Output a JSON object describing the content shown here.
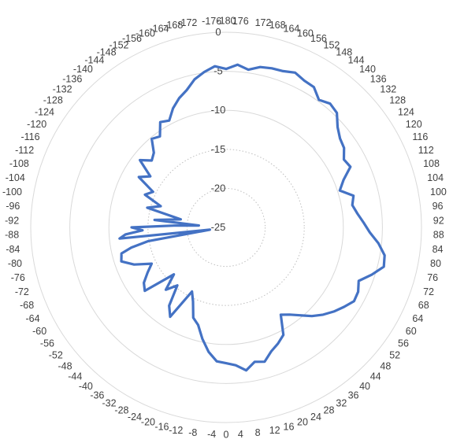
{
  "chart_data": {
    "type": "polar-line",
    "title": "",
    "angle_unit": "degrees",
    "angle_direction": "clockwise-from-bottom",
    "angle_tick_step": 4,
    "angle_tick_labels": [
      "-180",
      "-176",
      "-172",
      "-168",
      "-164",
      "-160",
      "-156",
      "-152",
      "-148",
      "-144",
      "-140",
      "-136",
      "-132",
      "-128",
      "-124",
      "-120",
      "-116",
      "-112",
      "-108",
      "-104",
      "-100",
      "-96",
      "-92",
      "-88",
      "-84",
      "-80",
      "-76",
      "-72",
      "-68",
      "-64",
      "-60",
      "-56",
      "-52",
      "-48",
      "-44",
      "-40",
      "-36",
      "-32",
      "-28",
      "-24",
      "-20",
      "-16",
      "-12",
      "-8",
      "-4",
      "0",
      "4",
      "8",
      "12",
      "16",
      "20",
      "24",
      "28",
      "32",
      "36",
      "40",
      "44",
      "48",
      "52",
      "56",
      "60",
      "64",
      "68",
      "72",
      "76",
      "80",
      "84",
      "88",
      "92",
      "96",
      "100",
      "104",
      "108",
      "112",
      "116",
      "120",
      "124",
      "128",
      "132",
      "136",
      "140",
      "144",
      "148",
      "152",
      "156",
      "160",
      "164",
      "168",
      "172",
      "176"
    ],
    "radial_range": [
      -25,
      0
    ],
    "radial_ticks": [
      -25,
      -20,
      -15,
      -10,
      -5,
      0
    ],
    "radial_tick_labels": [
      "-25",
      "-20",
      "-15",
      "-10",
      "-5",
      "0"
    ],
    "grid": true,
    "legend": "none",
    "series": [
      {
        "color": "#4472C4",
        "points": [
          [
            -180,
            -4.7
          ],
          [
            -176,
            -4.3
          ],
          [
            -172,
            -4.9
          ],
          [
            -168,
            -5.6
          ],
          [
            -164,
            -6.7
          ],
          [
            -160,
            -7.4
          ],
          [
            -156,
            -8.3
          ],
          [
            -152,
            -9.5
          ],
          [
            -148,
            -9.1
          ],
          [
            -144,
            -10.6
          ],
          [
            -140,
            -10.2
          ],
          [
            -136,
            -11.7
          ],
          [
            -132,
            -12.2
          ],
          [
            -128,
            -11.0
          ],
          [
            -124,
            -13.3
          ],
          [
            -120,
            -12.1
          ],
          [
            -116,
            -14.6
          ],
          [
            -112,
            -13.8
          ],
          [
            -108,
            -16.2
          ],
          [
            -104,
            -14.6
          ],
          [
            -100,
            -19.1
          ],
          [
            -96,
            -15.8
          ],
          [
            -94,
            -21.5
          ],
          [
            -92,
            -18.3
          ],
          [
            -90,
            -12.9
          ],
          [
            -88,
            -14.3
          ],
          [
            -86,
            -12.1
          ],
          [
            -84,
            -11.3
          ],
          [
            -82,
            -22.9
          ],
          [
            -80,
            -14.9
          ],
          [
            -78,
            -12.6
          ],
          [
            -76,
            -11.2
          ],
          [
            -72,
            -10.9
          ],
          [
            -68,
            -12.3
          ],
          [
            -64,
            -14.4
          ],
          [
            -60,
            -13.4
          ],
          [
            -56,
            -12.3
          ],
          [
            -52,
            -11.8
          ],
          [
            -48,
            -16.0
          ],
          [
            -44,
            -13.9
          ],
          [
            -40,
            -15.3
          ],
          [
            -36,
            -12.6
          ],
          [
            -32,
            -11.5
          ],
          [
            -28,
            -15.7
          ],
          [
            -24,
            -14.6
          ],
          [
            -20,
            -12.7
          ],
          [
            -16,
            -12.0
          ],
          [
            -12,
            -10.4
          ],
          [
            -8,
            -8.9
          ],
          [
            -4,
            -7.8
          ],
          [
            0,
            -7.6
          ],
          [
            4,
            -7.3
          ],
          [
            8,
            -6.5
          ],
          [
            12,
            -7.4
          ],
          [
            16,
            -7.1
          ],
          [
            20,
            -8.1
          ],
          [
            24,
            -8.7
          ],
          [
            28,
            -9.4
          ],
          [
            32,
            -11.8
          ],
          [
            36,
            -11.2
          ],
          [
            40,
            -10.3
          ],
          [
            44,
            -9.2
          ],
          [
            48,
            -8.3
          ],
          [
            52,
            -7.5
          ],
          [
            56,
            -6.8
          ],
          [
            60,
            -6.1
          ],
          [
            64,
            -6.2
          ],
          [
            68,
            -6.7
          ],
          [
            72,
            -5.4
          ],
          [
            76,
            -4.2
          ],
          [
            80,
            -4.4
          ],
          [
            84,
            -5.4
          ],
          [
            88,
            -6.6
          ],
          [
            92,
            -7.4
          ],
          [
            96,
            -8.1
          ],
          [
            100,
            -8.6
          ],
          [
            104,
            -8.2
          ],
          [
            108,
            -9.7
          ],
          [
            112,
            -8.8
          ],
          [
            116,
            -7.3
          ],
          [
            120,
            -7.6
          ],
          [
            124,
            -6.8
          ],
          [
            128,
            -6.5
          ],
          [
            132,
            -5.8
          ],
          [
            136,
            -4.6
          ],
          [
            140,
            -4.3
          ],
          [
            144,
            -4.8
          ],
          [
            148,
            -3.8
          ],
          [
            152,
            -3.7
          ],
          [
            156,
            -3.3
          ],
          [
            160,
            -3.7
          ],
          [
            164,
            -3.8
          ],
          [
            168,
            -4.0
          ],
          [
            172,
            -4.6
          ],
          [
            176,
            -4.1
          ],
          [
            180,
            -4.7
          ]
        ]
      }
    ]
  }
}
